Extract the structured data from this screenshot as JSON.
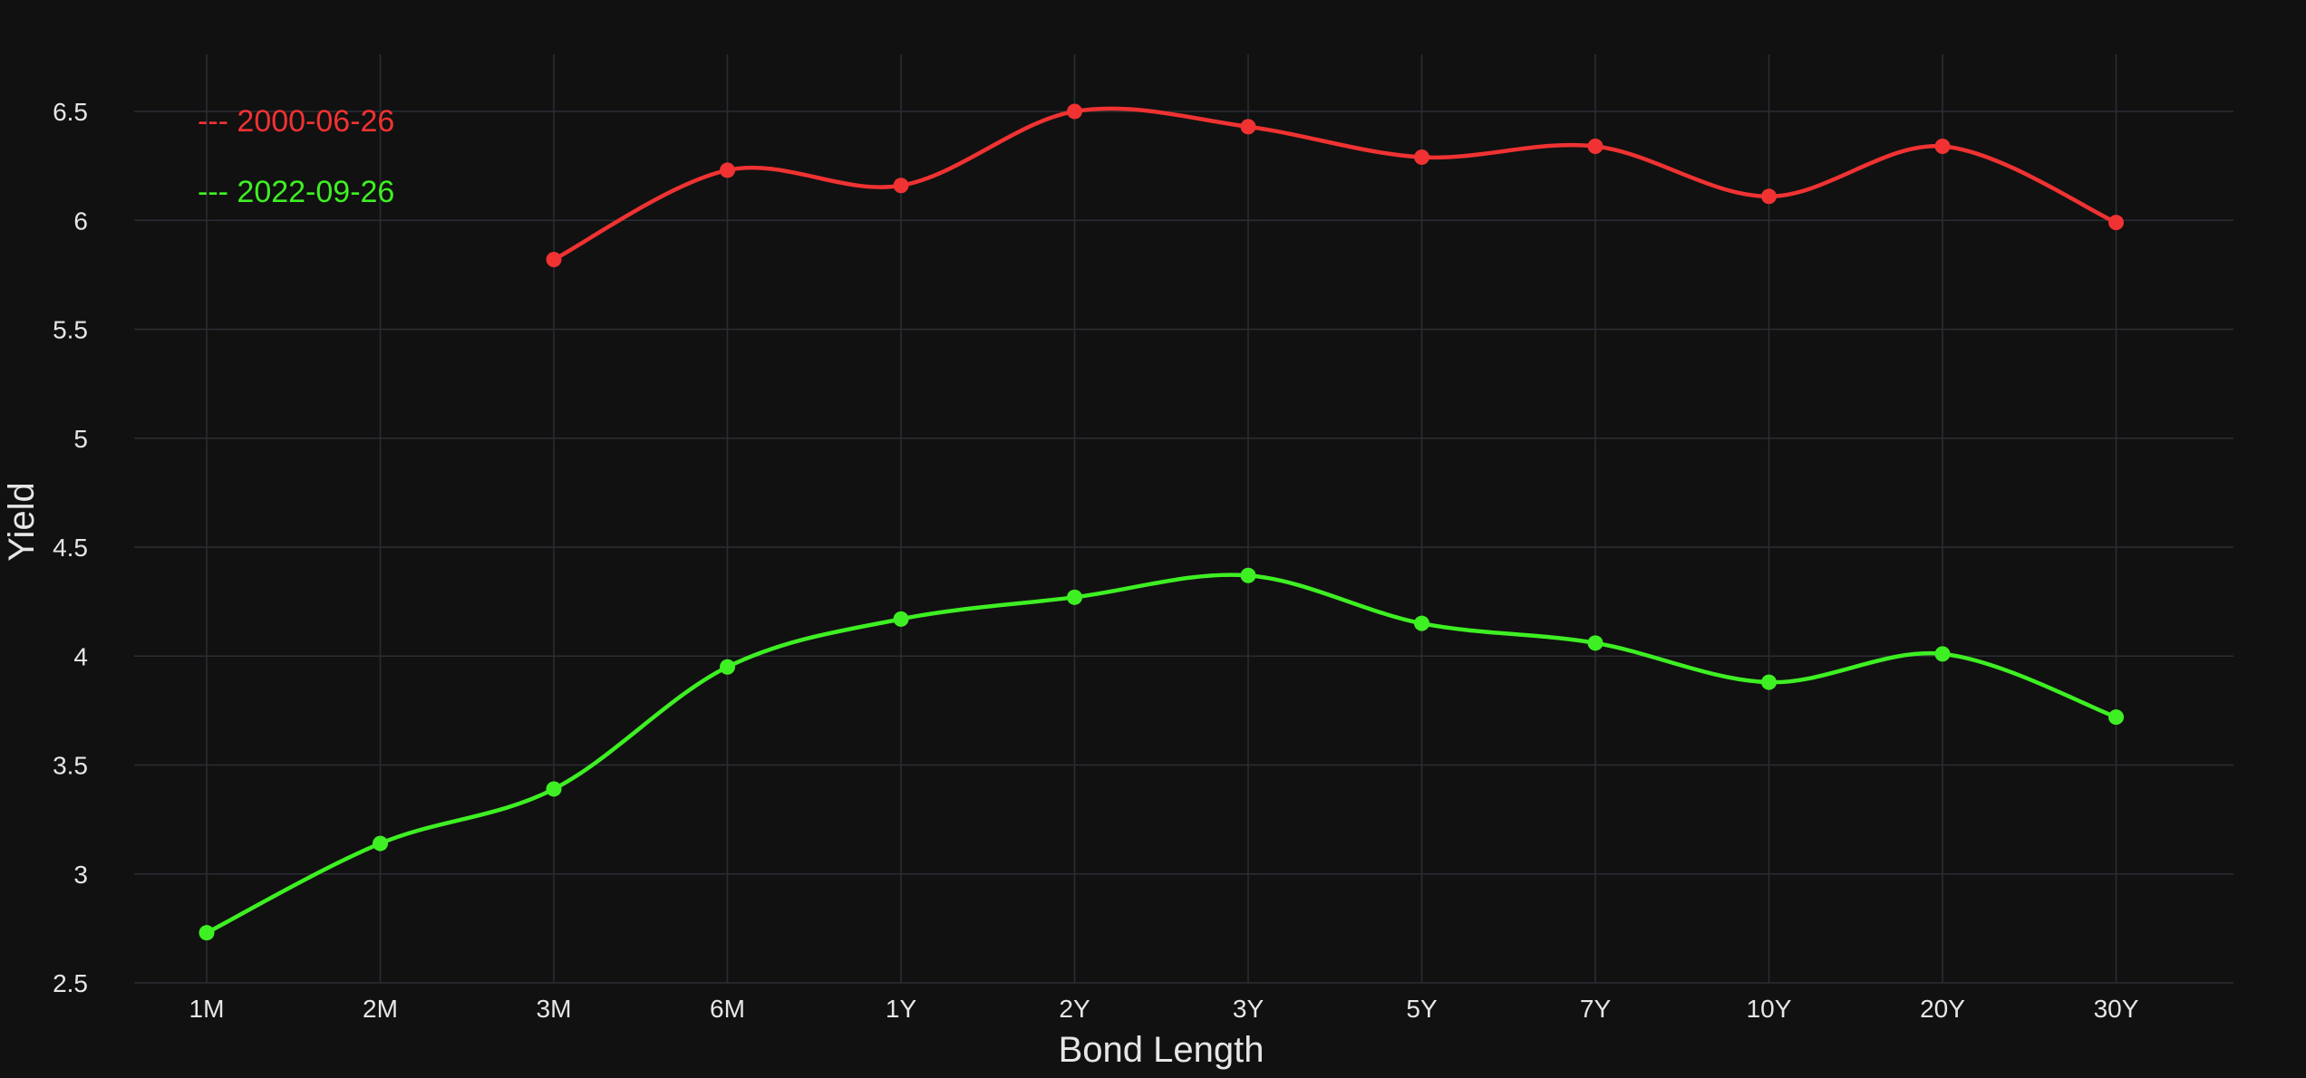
{
  "chart_data": {
    "type": "line",
    "title": "",
    "xlabel": "Bond Length",
    "ylabel": "Yield",
    "categories": [
      "1M",
      "2M",
      "3M",
      "6M",
      "1Y",
      "2Y",
      "3Y",
      "5Y",
      "7Y",
      "10Y",
      "20Y",
      "30Y"
    ],
    "ylim": [
      2.5,
      6.75
    ],
    "yticks": [
      2.5,
      3,
      3.5,
      4,
      4.5,
      5,
      5.5,
      6,
      6.5
    ],
    "ytick_labels": [
      "2.5",
      "3",
      "3.5",
      "4",
      "4.5",
      "5",
      "5.5",
      "6",
      "6.5"
    ],
    "grid": true,
    "legend_position": "top-left",
    "background": "#111111",
    "series": [
      {
        "name": "2000-06-26",
        "legend_label": "--- 2000-06-26",
        "color": "#f03232",
        "values": [
          null,
          null,
          5.82,
          6.23,
          6.16,
          6.5,
          6.43,
          6.29,
          6.34,
          6.11,
          6.34,
          5.99
        ]
      },
      {
        "name": "2022-09-26",
        "legend_label": "--- 2022-09-26",
        "color": "#3ef023",
        "values": [
          2.73,
          3.14,
          3.39,
          3.95,
          4.17,
          4.27,
          4.37,
          4.15,
          4.06,
          3.88,
          4.01,
          3.72
        ]
      }
    ]
  }
}
